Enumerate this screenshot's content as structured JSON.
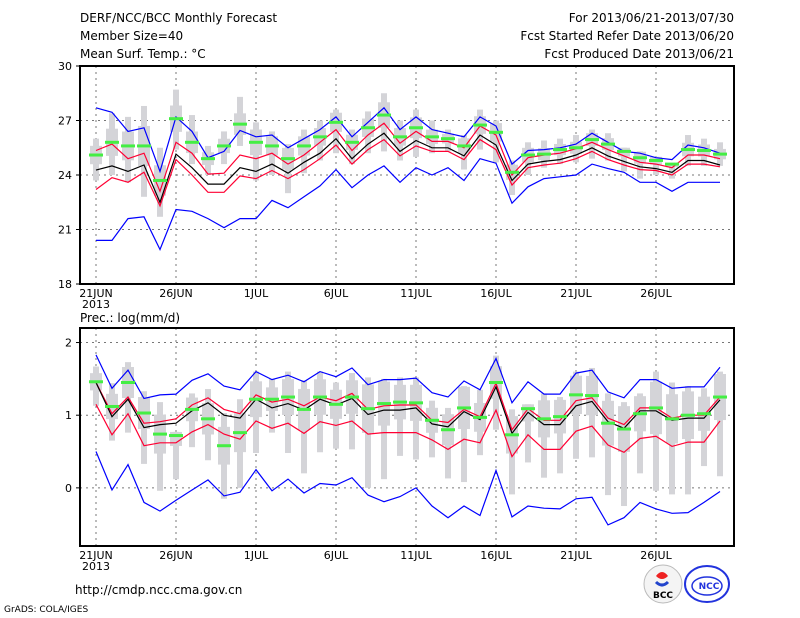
{
  "header": {
    "title": "DERF/NCC/BCC Monthly Forecast",
    "member_size": "Member Size=40",
    "variable": "Mean Surf. Temp.: °C",
    "period": "For 2013/06/21-2013/07/30",
    "started": "Fcst Started Refer Date 2013/06/20",
    "produced": "Fcst Produced Date 2013/06/21"
  },
  "footer": {
    "url": "http://cmdp.ncc.cma.gov.cn",
    "credit": "GrADS: COLA/IGES",
    "logo_bcc": "BCC",
    "logo_ncc": "NCC"
  },
  "colors": {
    "max_min": "#0000ff",
    "spread": "#ff0033",
    "mean": "#000000",
    "marker": "#44ee44",
    "box": "#d4d4d8"
  },
  "chart_data": [
    {
      "type": "line",
      "title": "Mean Surf. Temp.: °C",
      "ylabel": "°C",
      "ylim": [
        18,
        30
      ],
      "yticks": [
        "18",
        "21",
        "24",
        "27",
        "30"
      ],
      "ytick_values": [
        18,
        21,
        24,
        27,
        30
      ],
      "xticks": [
        "21JUN",
        "26JUN",
        "1JUL",
        "6JUL",
        "11JUL",
        "16JUL",
        "21JUL",
        "26JUL"
      ],
      "xtick_days": [
        0,
        5,
        10,
        15,
        20,
        25,
        30,
        35
      ],
      "year_label": "2013",
      "grid": true,
      "series": [
        {
          "name": "max",
          "color": "blue",
          "values": [
            27.7,
            27.45,
            26.4,
            26.6,
            24.2,
            27.2,
            26.4,
            24.95,
            25.3,
            26.45,
            26.1,
            26.2,
            25.5,
            26.0,
            26.5,
            27.2,
            26.1,
            26.9,
            27.7,
            26.5,
            27.2,
            26.5,
            26.3,
            26.1,
            27.2,
            26.7,
            24.6,
            25.35,
            25.4,
            25.5,
            25.7,
            26.3,
            25.8,
            25.3,
            25.2,
            24.95,
            24.85,
            25.65,
            25.5,
            25.2
          ]
        },
        {
          "name": "upper",
          "color": "red",
          "values": [
            25.35,
            25.7,
            24.9,
            25.2,
            23.1,
            25.8,
            25.2,
            24.05,
            24.1,
            25.1,
            24.9,
            25.2,
            24.6,
            25.1,
            25.8,
            26.5,
            25.35,
            26.2,
            26.85,
            25.75,
            26.4,
            25.85,
            25.85,
            25.5,
            26.7,
            26.2,
            24.0,
            24.95,
            25.1,
            25.2,
            25.45,
            25.8,
            25.4,
            25.05,
            24.7,
            24.6,
            24.4,
            25.1,
            25.1,
            24.9
          ]
        },
        {
          "name": "mean",
          "color": "black",
          "values": [
            24.27,
            24.5,
            24.2,
            24.55,
            22.5,
            25.15,
            24.4,
            23.5,
            23.5,
            24.4,
            24.2,
            24.6,
            24.1,
            24.7,
            25.2,
            26.0,
            24.9,
            25.7,
            26.3,
            25.3,
            25.9,
            25.5,
            25.5,
            25.05,
            26.2,
            25.65,
            23.7,
            24.6,
            24.75,
            24.85,
            25.1,
            25.5,
            25.05,
            24.75,
            24.45,
            24.35,
            24.15,
            24.8,
            24.8,
            24.55
          ]
        },
        {
          "name": "lower",
          "color": "red",
          "values": [
            23.2,
            23.85,
            23.6,
            24.15,
            22.3,
            24.85,
            24.0,
            23.05,
            23.05,
            23.95,
            23.8,
            24.25,
            23.8,
            24.3,
            24.9,
            25.65,
            24.6,
            25.4,
            25.95,
            25.05,
            25.6,
            25.3,
            25.3,
            24.85,
            25.95,
            25.4,
            23.45,
            24.4,
            24.55,
            24.65,
            24.9,
            25.3,
            24.85,
            24.55,
            24.3,
            24.25,
            24.0,
            24.6,
            24.6,
            24.45
          ]
        },
        {
          "name": "min",
          "color": "blue",
          "values": [
            20.4,
            20.4,
            21.6,
            21.7,
            19.9,
            22.1,
            22.0,
            21.6,
            21.1,
            21.6,
            21.6,
            22.6,
            22.2,
            22.8,
            23.4,
            24.3,
            23.3,
            24.0,
            24.5,
            23.6,
            24.4,
            24.0,
            24.4,
            23.7,
            24.9,
            24.65,
            22.45,
            23.35,
            23.8,
            23.9,
            24.0,
            24.6,
            24.35,
            24.15,
            23.6,
            23.6,
            23.1,
            23.6,
            23.6,
            23.6
          ]
        },
        {
          "name": "marker",
          "color": "green",
          "values": [
            25.1,
            25.8,
            25.6,
            25.6,
            23.7,
            27.1,
            25.8,
            24.9,
            25.6,
            26.8,
            25.8,
            25.6,
            24.9,
            25.6,
            26.1,
            26.9,
            25.8,
            26.6,
            27.3,
            26.1,
            26.6,
            26.1,
            26.0,
            25.6,
            26.75,
            26.35,
            24.15,
            25.1,
            25.15,
            25.4,
            25.5,
            25.95,
            25.7,
            25.3,
            24.95,
            24.8,
            24.6,
            25.4,
            25.35,
            25.15
          ]
        }
      ],
      "whisker_low": [
        23.7,
        24.0,
        23.6,
        22.8,
        21.7,
        25.4,
        24.6,
        24.0,
        24.6,
        25.6,
        23.7,
        24.0,
        23.0,
        24.1,
        24.8,
        25.2,
        24.6,
        25.2,
        25.3,
        24.8,
        25.0,
        25.2,
        25.3,
        24.3,
        25.4,
        24.7,
        22.9,
        24.0,
        24.4,
        24.6,
        24.7,
        24.9,
        24.8,
        24.2,
        23.8,
        24.0,
        23.8,
        24.5,
        24.5,
        24.5
      ],
      "whisker_high": [
        26.0,
        27.4,
        27.2,
        27.8,
        25.5,
        28.7,
        27.3,
        25.6,
        26.4,
        28.3,
        26.9,
        26.4,
        25.7,
        26.5,
        27.0,
        27.6,
        26.5,
        27.5,
        28.5,
        27.0,
        27.6,
        27.0,
        26.5,
        26.2,
        27.6,
        27.0,
        24.8,
        25.8,
        25.9,
        26.0,
        26.2,
        26.5,
        26.3,
        25.5,
        25.3,
        25.0,
        24.6,
        26.2,
        26.0,
        25.8
      ]
    },
    {
      "type": "line",
      "title": "Prec.: log(mm/d)",
      "ylabel": "log(mm/d)",
      "ylim": [
        -0.8,
        2.2
      ],
      "yticks": [
        "0",
        "1",
        "2"
      ],
      "ytick_values": [
        0,
        1,
        2
      ],
      "xticks": [
        "21JUN",
        "26JUN",
        "1JUL",
        "6JUL",
        "11JUL",
        "16JUL",
        "21JUL",
        "26JUL"
      ],
      "xtick_days": [
        0,
        5,
        10,
        15,
        20,
        25,
        30,
        35
      ],
      "year_label": "2013",
      "grid": true,
      "series": [
        {
          "name": "max",
          "color": "blue",
          "values": [
            1.83,
            1.37,
            1.62,
            1.23,
            1.28,
            1.29,
            1.48,
            1.57,
            1.4,
            1.35,
            1.6,
            1.49,
            1.55,
            1.46,
            1.6,
            1.53,
            1.65,
            1.42,
            1.49,
            1.49,
            1.51,
            1.31,
            1.25,
            1.47,
            1.35,
            1.78,
            1.17,
            1.46,
            1.29,
            1.29,
            1.58,
            1.62,
            1.32,
            1.24,
            1.49,
            1.49,
            1.37,
            1.39,
            1.39,
            1.66
          ]
        },
        {
          "name": "upper",
          "color": "red",
          "values": [
            1.45,
            1.02,
            1.25,
            0.89,
            0.91,
            0.95,
            1.14,
            1.24,
            1.08,
            1.02,
            1.28,
            1.18,
            1.22,
            1.13,
            1.25,
            1.2,
            1.3,
            1.08,
            1.13,
            1.14,
            1.14,
            0.93,
            0.9,
            1.08,
            0.98,
            1.44,
            0.8,
            1.09,
            0.93,
            0.93,
            1.2,
            1.24,
            0.96,
            0.87,
            1.1,
            1.1,
            0.96,
            1.0,
            1.0,
            1.25
          ]
        },
        {
          "name": "mean",
          "color": "black",
          "values": [
            1.45,
            0.98,
            1.22,
            0.83,
            0.87,
            0.89,
            1.06,
            1.17,
            1.0,
            0.96,
            1.22,
            1.1,
            1.16,
            1.07,
            1.22,
            1.14,
            1.23,
            1.01,
            1.07,
            1.07,
            1.1,
            0.88,
            0.84,
            1.05,
            0.94,
            1.39,
            0.75,
            1.04,
            0.87,
            0.87,
            1.13,
            1.19,
            0.91,
            0.82,
            1.06,
            1.06,
            0.93,
            0.96,
            0.96,
            1.21
          ]
        },
        {
          "name": "lower",
          "color": "red",
          "values": [
            1.15,
            0.73,
            1.02,
            0.58,
            0.62,
            0.62,
            0.77,
            0.87,
            0.74,
            0.67,
            0.92,
            0.82,
            0.89,
            0.75,
            0.91,
            0.86,
            0.92,
            0.74,
            0.76,
            0.76,
            0.76,
            0.66,
            0.53,
            0.67,
            0.62,
            1.07,
            0.43,
            0.73,
            0.53,
            0.53,
            0.78,
            0.85,
            0.59,
            0.49,
            0.68,
            0.71,
            0.57,
            0.63,
            0.63,
            0.92
          ]
        },
        {
          "name": "min",
          "color": "blue",
          "values": [
            0.5,
            -0.03,
            0.32,
            -0.2,
            -0.32,
            -0.17,
            -0.03,
            0.11,
            -0.11,
            -0.06,
            0.25,
            -0.04,
            0.12,
            -0.07,
            0.06,
            0.04,
            0.14,
            -0.1,
            -0.19,
            -0.12,
            0.0,
            -0.25,
            -0.41,
            -0.25,
            -0.38,
            0.24,
            -0.4,
            -0.25,
            -0.28,
            -0.29,
            -0.15,
            -0.13,
            -0.51,
            -0.41,
            -0.2,
            -0.29,
            -0.35,
            -0.34,
            -0.2,
            -0.05
          ]
        },
        {
          "name": "marker",
          "color": "green",
          "values": [
            1.46,
            1.12,
            1.45,
            1.03,
            0.74,
            0.72,
            1.08,
            0.95,
            0.58,
            0.76,
            1.22,
            1.22,
            1.25,
            1.08,
            1.25,
            1.15,
            1.25,
            1.09,
            1.16,
            1.18,
            1.17,
            0.93,
            0.8,
            1.1,
            0.97,
            1.45,
            0.73,
            1.09,
            0.95,
            0.98,
            1.28,
            1.27,
            0.89,
            0.81,
            1.02,
            1.1,
            0.95,
            1.0,
            1.02,
            1.25
          ]
        }
      ],
      "whisker_low": [
        1.13,
        0.65,
        0.76,
        0.33,
        -0.04,
        0.12,
        0.56,
        0.38,
        -0.15,
        0.0,
        0.48,
        0.76,
        0.48,
        0.2,
        0.49,
        0.54,
        0.53,
        0.0,
        0.12,
        0.44,
        0.39,
        0.42,
        0.13,
        0.08,
        0.45,
        0.8,
        -0.09,
        0.35,
        0.14,
        0.2,
        0.4,
        0.42,
        -0.1,
        -0.25,
        0.2,
        -0.04,
        -0.09,
        -0.09,
        0.3,
        0.16
      ],
      "whisker_high": [
        1.67,
        1.44,
        1.73,
        1.33,
        1.18,
        0.77,
        1.3,
        1.36,
        1.03,
        1.22,
        1.6,
        1.5,
        1.6,
        1.48,
        1.6,
        1.45,
        1.58,
        1.52,
        1.5,
        1.52,
        1.52,
        1.2,
        1.1,
        1.4,
        1.35,
        1.82,
        1.08,
        1.15,
        1.3,
        1.25,
        1.6,
        1.65,
        1.3,
        1.18,
        1.3,
        1.6,
        1.45,
        1.4,
        1.37,
        1.6
      ]
    }
  ]
}
